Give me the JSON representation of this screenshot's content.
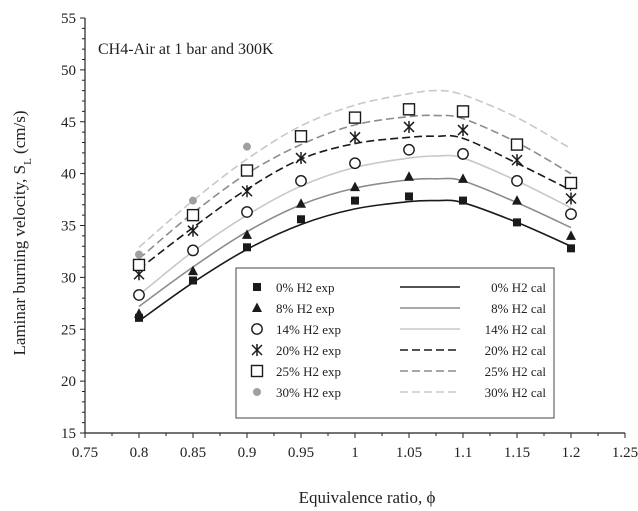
{
  "chart_data": {
    "type": "scatter",
    "annotation": "CH4-Air at 1 bar and 300K",
    "xlabel": "Equivalence ratio, ϕ",
    "ylabel_main": "Laminar burning velocity, S",
    "ylabel_sub": "L",
    "ylabel_unit": " (cm/s)",
    "xlim": [
      0.75,
      1.25
    ],
    "ylim": [
      15,
      55
    ],
    "x_ticks": [
      "0.75",
      "0.8",
      "0.85",
      "0.9",
      "0.95",
      "1",
      "1.05",
      "1.1",
      "1.15",
      "1.2",
      "1.25"
    ],
    "y_ticks": [
      "15",
      "20",
      "25",
      "30",
      "35",
      "40",
      "45",
      "50",
      "55"
    ],
    "grid": false,
    "legend_position": "bottom-center",
    "experimental": [
      {
        "name": "0% H2 exp",
        "marker": "square-filled",
        "color": "#1a1a1a",
        "x": [
          0.8,
          0.85,
          0.9,
          0.95,
          1.0,
          1.05,
          1.1,
          1.15,
          1.2
        ],
        "y": [
          26.1,
          29.7,
          32.9,
          35.6,
          37.4,
          37.8,
          37.4,
          35.3,
          32.8
        ]
      },
      {
        "name": "8% H2 exp",
        "marker": "triangle-filled",
        "color": "#1a1a1a",
        "x": [
          0.8,
          0.85,
          0.9,
          0.95,
          1.0,
          1.05,
          1.1,
          1.15,
          1.2
        ],
        "y": [
          26.5,
          30.6,
          34.1,
          37.1,
          38.7,
          39.7,
          39.5,
          37.4,
          34.0
        ]
      },
      {
        "name": "14% H2 exp",
        "marker": "circle-open",
        "color": "#1a1a1a",
        "x": [
          0.8,
          0.85,
          0.9,
          0.95,
          1.0,
          1.05,
          1.1,
          1.15,
          1.2
        ],
        "y": [
          28.3,
          32.6,
          36.3,
          39.3,
          41.0,
          42.3,
          41.9,
          39.3,
          36.1
        ]
      },
      {
        "name": "20% H2 exp",
        "marker": "asterisk",
        "color": "#1a1a1a",
        "x": [
          0.8,
          0.85,
          0.9,
          0.95,
          1.0,
          1.05,
          1.1,
          1.15,
          1.2
        ],
        "y": [
          30.3,
          34.5,
          38.3,
          41.5,
          43.5,
          44.5,
          44.2,
          41.3,
          37.6
        ]
      },
      {
        "name": "25% H2 exp",
        "marker": "square-open",
        "color": "#1a1a1a",
        "x": [
          0.8,
          0.85,
          0.9,
          0.95,
          1.0,
          1.05,
          1.1,
          1.15,
          1.2
        ],
        "y": [
          31.2,
          36.0,
          40.3,
          43.6,
          45.4,
          46.2,
          46.0,
          42.8,
          39.1
        ]
      },
      {
        "name": "30% H2 exp",
        "marker": "circle-filled",
        "color": "#a0a0a0",
        "x": [
          0.8,
          0.85,
          0.9
        ],
        "y": [
          32.2,
          37.4,
          42.6
        ]
      }
    ],
    "calculated": [
      {
        "name": "0% H2 cal",
        "style": "solid",
        "color": "#1a1a1a",
        "x": [
          0.8,
          0.85,
          0.9,
          0.95,
          1.0,
          1.05,
          1.075,
          1.1,
          1.15,
          1.2
        ],
        "y": [
          25.8,
          29.5,
          32.7,
          35.1,
          36.6,
          37.3,
          37.4,
          37.2,
          35.3,
          33.0
        ]
      },
      {
        "name": "8% H2 cal",
        "style": "solid",
        "color": "#8c8c8c",
        "x": [
          0.8,
          0.85,
          0.9,
          0.95,
          1.0,
          1.05,
          1.075,
          1.1,
          1.15,
          1.2
        ],
        "y": [
          27.2,
          31.0,
          34.4,
          37.0,
          38.6,
          39.4,
          39.5,
          39.3,
          37.2,
          34.8
        ]
      },
      {
        "name": "14% H2 cal",
        "style": "solid",
        "color": "#c8c8c8",
        "x": [
          0.8,
          0.85,
          0.9,
          0.95,
          1.0,
          1.05,
          1.075,
          1.1,
          1.15,
          1.2
        ],
        "y": [
          28.3,
          32.5,
          36.0,
          38.8,
          40.6,
          41.5,
          41.7,
          41.5,
          39.3,
          36.7
        ]
      },
      {
        "name": "20% H2 cal",
        "style": "dashed",
        "color": "#1a1a1a",
        "x": [
          0.8,
          0.85,
          0.9,
          0.95,
          1.0,
          1.05,
          1.075,
          1.1,
          1.15,
          1.2
        ],
        "y": [
          30.8,
          34.8,
          38.5,
          41.4,
          42.9,
          43.5,
          43.6,
          43.4,
          41.0,
          38.4
        ]
      },
      {
        "name": "25% H2 cal",
        "style": "dashed",
        "color": "#8c8c8c",
        "x": [
          0.8,
          0.85,
          0.9,
          0.95,
          1.0,
          1.05,
          1.075,
          1.1,
          1.15,
          1.2
        ],
        "y": [
          31.8,
          36.2,
          40.0,
          42.8,
          44.7,
          45.5,
          45.6,
          45.3,
          43.0,
          40.0
        ]
      },
      {
        "name": "30% H2 cal",
        "style": "dashed",
        "color": "#c8c8c8",
        "x": [
          0.8,
          0.85,
          0.9,
          0.95,
          1.0,
          1.05,
          1.075,
          1.1,
          1.15,
          1.2
        ],
        "y": [
          32.9,
          37.4,
          41.4,
          44.6,
          46.6,
          47.7,
          48.0,
          47.6,
          45.4,
          42.4
        ]
      }
    ]
  }
}
